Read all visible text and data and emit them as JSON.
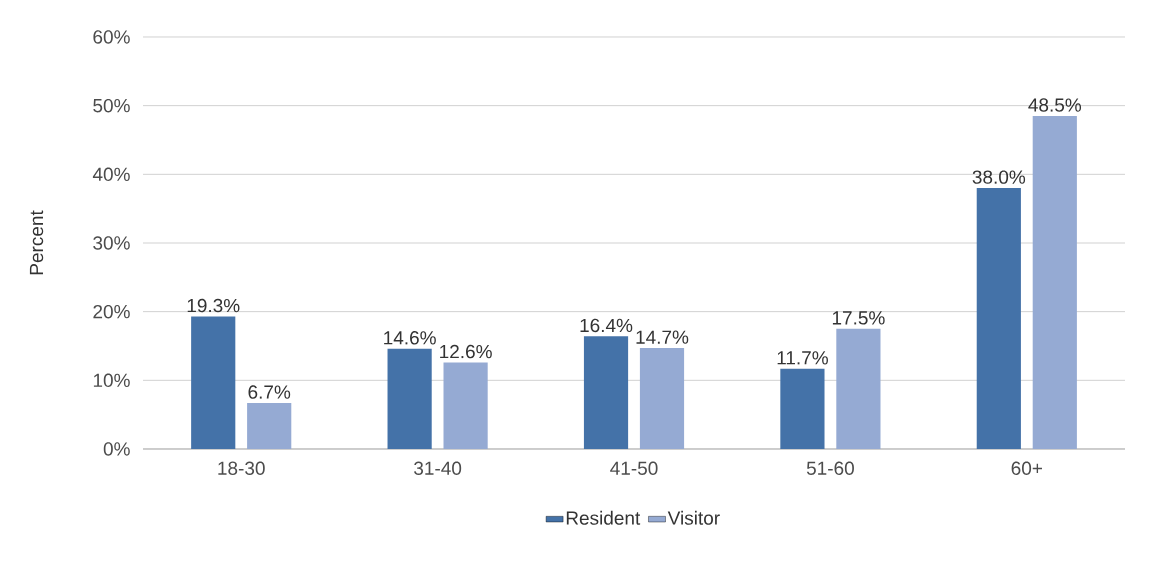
{
  "chart_data": {
    "type": "bar",
    "ylabel": "Percent",
    "categories": [
      "18-30",
      "31-40",
      "41-50",
      "51-60",
      "60+"
    ],
    "series": [
      {
        "name": "Resident",
        "color": "#4472a8",
        "values": [
          19.3,
          14.6,
          16.4,
          11.7,
          38.0
        ],
        "value_labels": [
          "19.3%",
          "14.6%",
          "16.4%",
          "11.7%",
          "38.0%"
        ]
      },
      {
        "name": "Visitor",
        "color": "#95aad3",
        "values": [
          6.7,
          12.6,
          14.7,
          17.5,
          48.5
        ],
        "value_labels": [
          "6.7%",
          "12.6%",
          "14.7%",
          "17.5%",
          "48.5%"
        ]
      }
    ],
    "ylim": [
      0,
      60
    ],
    "yticks": [
      {
        "value": 0,
        "label": "0%"
      },
      {
        "value": 10,
        "label": "10%"
      },
      {
        "value": 20,
        "label": "20%"
      },
      {
        "value": 30,
        "label": "30%"
      },
      {
        "value": 40,
        "label": "40%"
      },
      {
        "value": 50,
        "label": "50%"
      },
      {
        "value": 60,
        "label": "60%"
      }
    ],
    "grid": "y",
    "legend": "bottom"
  }
}
